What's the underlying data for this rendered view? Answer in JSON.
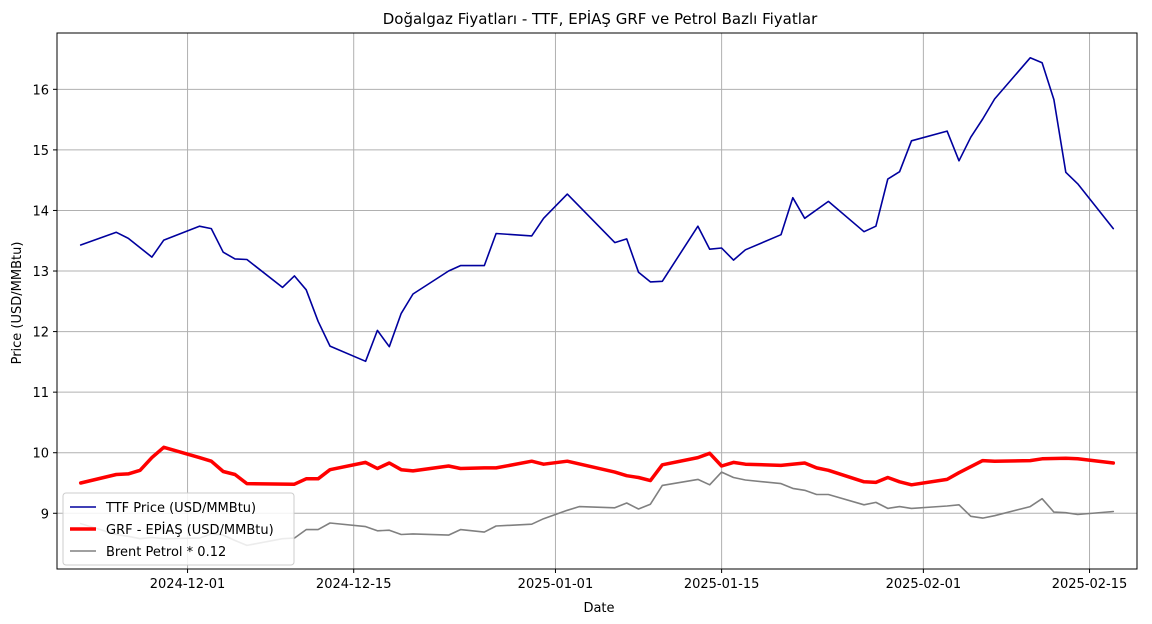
{
  "colors": {
    "ttf": "#00009e",
    "grf": "#ff0000",
    "brent": "#808080",
    "grid": "#b0b0b0",
    "axis": "#000000"
  },
  "chart_data": {
    "type": "line",
    "title": "Doğalgaz Fiyatları - TTF, EPİAŞ GRF ve Petrol Bazlı Fiyatlar",
    "xlabel": "Date",
    "ylabel": "Price (USD/MMBtu)",
    "xlim": [
      "2024-11-20",
      "2025-02-19"
    ],
    "ylim": [
      8.08,
      16.93
    ],
    "grid": true,
    "legend_position": "lower-left",
    "x_ticks": [
      "2024-12-01",
      "2024-12-15",
      "2025-01-01",
      "2025-01-15",
      "2025-02-01",
      "2025-02-15"
    ],
    "y_ticks": [
      9,
      10,
      11,
      12,
      13,
      14,
      15,
      16
    ],
    "series": [
      {
        "name": "TTF Price (USD/MMBtu)",
        "color_key": "ttf",
        "line_width": 1.6,
        "points": [
          [
            "2024-11-22",
            13.43
          ],
          [
            "2024-11-25",
            13.64
          ],
          [
            "2024-11-26",
            13.54
          ],
          [
            "2024-11-28",
            13.23
          ],
          [
            "2024-11-29",
            13.51
          ],
          [
            "2024-12-02",
            13.74
          ],
          [
            "2024-12-03",
            13.7
          ],
          [
            "2024-12-04",
            13.31
          ],
          [
            "2024-12-05",
            13.2
          ],
          [
            "2024-12-06",
            13.19
          ],
          [
            "2024-12-09",
            12.73
          ],
          [
            "2024-12-10",
            12.92
          ],
          [
            "2024-12-11",
            12.69
          ],
          [
            "2024-12-12",
            12.17
          ],
          [
            "2024-12-13",
            11.76
          ],
          [
            "2024-12-16",
            11.51
          ],
          [
            "2024-12-17",
            12.02
          ],
          [
            "2024-12-18",
            11.75
          ],
          [
            "2024-12-19",
            12.3
          ],
          [
            "2024-12-20",
            12.62
          ],
          [
            "2024-12-23",
            13.0
          ],
          [
            "2024-12-24",
            13.09
          ],
          [
            "2024-12-26",
            13.09
          ],
          [
            "2024-12-27",
            13.62
          ],
          [
            "2024-12-30",
            13.58
          ],
          [
            "2024-12-31",
            13.87
          ],
          [
            "2025-01-02",
            14.27
          ],
          [
            "2025-01-06",
            13.47
          ],
          [
            "2025-01-07",
            13.53
          ],
          [
            "2025-01-08",
            12.98
          ],
          [
            "2025-01-09",
            12.82
          ],
          [
            "2025-01-10",
            12.83
          ],
          [
            "2025-01-13",
            13.74
          ],
          [
            "2025-01-14",
            13.36
          ],
          [
            "2025-01-15",
            13.38
          ],
          [
            "2025-01-16",
            13.18
          ],
          [
            "2025-01-17",
            13.35
          ],
          [
            "2025-01-20",
            13.6
          ],
          [
            "2025-01-21",
            14.21
          ],
          [
            "2025-01-22",
            13.87
          ],
          [
            "2025-01-24",
            14.15
          ],
          [
            "2025-01-27",
            13.65
          ],
          [
            "2025-01-28",
            13.74
          ],
          [
            "2025-01-29",
            14.52
          ],
          [
            "2025-01-30",
            14.64
          ],
          [
            "2025-01-31",
            15.15
          ],
          [
            "2025-02-03",
            15.31
          ],
          [
            "2025-02-04",
            14.82
          ],
          [
            "2025-02-05",
            15.21
          ],
          [
            "2025-02-06",
            15.51
          ],
          [
            "2025-02-07",
            15.84
          ],
          [
            "2025-02-10",
            16.52
          ],
          [
            "2025-02-11",
            16.44
          ],
          [
            "2025-02-12",
            15.83
          ],
          [
            "2025-02-13",
            14.63
          ],
          [
            "2025-02-14",
            14.44
          ],
          [
            "2025-02-17",
            13.7
          ]
        ]
      },
      {
        "name": "GRF - EPİAŞ (USD/MMBtu)",
        "color_key": "grf",
        "line_width": 3.5,
        "points": [
          [
            "2024-11-22",
            9.5
          ],
          [
            "2024-11-25",
            9.64
          ],
          [
            "2024-11-26",
            9.65
          ],
          [
            "2024-11-27",
            9.71
          ],
          [
            "2024-11-28",
            9.92
          ],
          [
            "2024-11-29",
            10.09
          ],
          [
            "2024-12-02",
            9.92
          ],
          [
            "2024-12-03",
            9.86
          ],
          [
            "2024-12-04",
            9.69
          ],
          [
            "2024-12-05",
            9.64
          ],
          [
            "2024-12-06",
            9.49
          ],
          [
            "2024-12-10",
            9.48
          ],
          [
            "2024-12-11",
            9.57
          ],
          [
            "2024-12-12",
            9.57
          ],
          [
            "2024-12-13",
            9.72
          ],
          [
            "2024-12-16",
            9.84
          ],
          [
            "2024-12-17",
            9.74
          ],
          [
            "2024-12-18",
            9.83
          ],
          [
            "2024-12-19",
            9.72
          ],
          [
            "2024-12-20",
            9.7
          ],
          [
            "2024-12-23",
            9.78
          ],
          [
            "2024-12-24",
            9.74
          ],
          [
            "2024-12-26",
            9.75
          ],
          [
            "2024-12-27",
            9.75
          ],
          [
            "2024-12-30",
            9.86
          ],
          [
            "2024-12-31",
            9.81
          ],
          [
            "2025-01-02",
            9.86
          ],
          [
            "2025-01-06",
            9.68
          ],
          [
            "2025-01-07",
            9.62
          ],
          [
            "2025-01-08",
            9.59
          ],
          [
            "2025-01-09",
            9.54
          ],
          [
            "2025-01-10",
            9.8
          ],
          [
            "2025-01-13",
            9.92
          ],
          [
            "2025-01-14",
            9.99
          ],
          [
            "2025-01-15",
            9.78
          ],
          [
            "2025-01-16",
            9.84
          ],
          [
            "2025-01-17",
            9.81
          ],
          [
            "2025-01-20",
            9.79
          ],
          [
            "2025-01-22",
            9.83
          ],
          [
            "2025-01-23",
            9.75
          ],
          [
            "2025-01-24",
            9.71
          ],
          [
            "2025-01-27",
            9.52
          ],
          [
            "2025-01-28",
            9.51
          ],
          [
            "2025-01-29",
            9.59
          ],
          [
            "2025-01-30",
            9.52
          ],
          [
            "2025-01-31",
            9.47
          ],
          [
            "2025-02-03",
            9.56
          ],
          [
            "2025-02-04",
            9.67
          ],
          [
            "2025-02-06",
            9.87
          ],
          [
            "2025-02-07",
            9.86
          ],
          [
            "2025-02-10",
            9.87
          ],
          [
            "2025-02-11",
            9.9
          ],
          [
            "2025-02-13",
            9.91
          ],
          [
            "2025-02-14",
            9.9
          ],
          [
            "2025-02-17",
            9.83
          ]
        ]
      },
      {
        "name": "Brent Petrol * 0.12",
        "color_key": "brent",
        "line_width": 1.6,
        "points": [
          [
            "2024-11-22",
            8.83
          ],
          [
            "2024-11-25",
            8.65
          ],
          [
            "2024-11-26",
            8.62
          ],
          [
            "2024-11-27",
            8.58
          ],
          [
            "2024-11-28",
            8.6
          ],
          [
            "2024-11-29",
            8.58
          ],
          [
            "2024-12-02",
            8.59
          ],
          [
            "2024-12-03",
            8.66
          ],
          [
            "2024-12-04",
            8.64
          ],
          [
            "2024-12-05",
            8.55
          ],
          [
            "2024-12-06",
            8.47
          ],
          [
            "2024-12-09",
            8.58
          ],
          [
            "2024-12-10",
            8.59
          ],
          [
            "2024-12-11",
            8.73
          ],
          [
            "2024-12-12",
            8.73
          ],
          [
            "2024-12-13",
            8.84
          ],
          [
            "2024-12-16",
            8.78
          ],
          [
            "2024-12-17",
            8.71
          ],
          [
            "2024-12-18",
            8.72
          ],
          [
            "2024-12-19",
            8.65
          ],
          [
            "2024-12-20",
            8.66
          ],
          [
            "2024-12-23",
            8.64
          ],
          [
            "2024-12-24",
            8.73
          ],
          [
            "2024-12-26",
            8.69
          ],
          [
            "2024-12-27",
            8.79
          ],
          [
            "2024-12-30",
            8.82
          ],
          [
            "2024-12-31",
            8.91
          ],
          [
            "2025-01-02",
            9.05
          ],
          [
            "2025-01-03",
            9.11
          ],
          [
            "2025-01-06",
            9.09
          ],
          [
            "2025-01-07",
            9.17
          ],
          [
            "2025-01-08",
            9.07
          ],
          [
            "2025-01-09",
            9.15
          ],
          [
            "2025-01-10",
            9.46
          ],
          [
            "2025-01-13",
            9.56
          ],
          [
            "2025-01-14",
            9.47
          ],
          [
            "2025-01-15",
            9.68
          ],
          [
            "2025-01-16",
            9.59
          ],
          [
            "2025-01-17",
            9.55
          ],
          [
            "2025-01-20",
            9.49
          ],
          [
            "2025-01-21",
            9.41
          ],
          [
            "2025-01-22",
            9.38
          ],
          [
            "2025-01-23",
            9.31
          ],
          [
            "2025-01-24",
            9.31
          ],
          [
            "2025-01-27",
            9.14
          ],
          [
            "2025-01-28",
            9.18
          ],
          [
            "2025-01-29",
            9.08
          ],
          [
            "2025-01-30",
            9.11
          ],
          [
            "2025-01-31",
            9.08
          ],
          [
            "2025-02-03",
            9.12
          ],
          [
            "2025-02-04",
            9.14
          ],
          [
            "2025-02-05",
            8.95
          ],
          [
            "2025-02-06",
            8.92
          ],
          [
            "2025-02-07",
            8.96
          ],
          [
            "2025-02-10",
            9.11
          ],
          [
            "2025-02-11",
            9.24
          ],
          [
            "2025-02-12",
            9.02
          ],
          [
            "2025-02-13",
            9.01
          ],
          [
            "2025-02-14",
            8.98
          ],
          [
            "2025-02-17",
            9.03
          ]
        ]
      }
    ]
  }
}
